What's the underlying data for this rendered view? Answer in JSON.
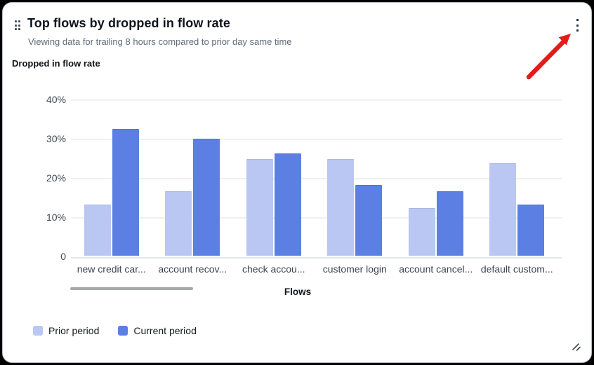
{
  "widget": {
    "title": "Top flows by dropped in flow rate",
    "subtitle": "Viewing data for trailing 8 hours compared to prior day same time"
  },
  "chart_data": {
    "type": "bar",
    "title": "Dropped in flow rate",
    "xlabel": "Flows",
    "ylabel": "",
    "ylim": [
      0,
      40
    ],
    "ytick_labels": [
      "40%",
      "30%",
      "20%",
      "10%",
      "0"
    ],
    "grid": true,
    "legend_position": "bottom-left",
    "categories": [
      "new credit car...",
      "account recov...",
      "check accou...",
      "customer login",
      "account cancel...",
      "default custom..."
    ],
    "series": [
      {
        "name": "Prior period",
        "color": "#b9c7f2",
        "values": [
          13,
          16.5,
          24.7,
          24.7,
          12.2,
          23.5
        ]
      },
      {
        "name": "Current period",
        "color": "#5c7fe4",
        "values": [
          32.3,
          29.9,
          26,
          18,
          16.4,
          13
        ]
      }
    ]
  },
  "annotation_arrow": {
    "color": "#e31b1b"
  },
  "icon_colors": {
    "controls": "#414d5c"
  }
}
